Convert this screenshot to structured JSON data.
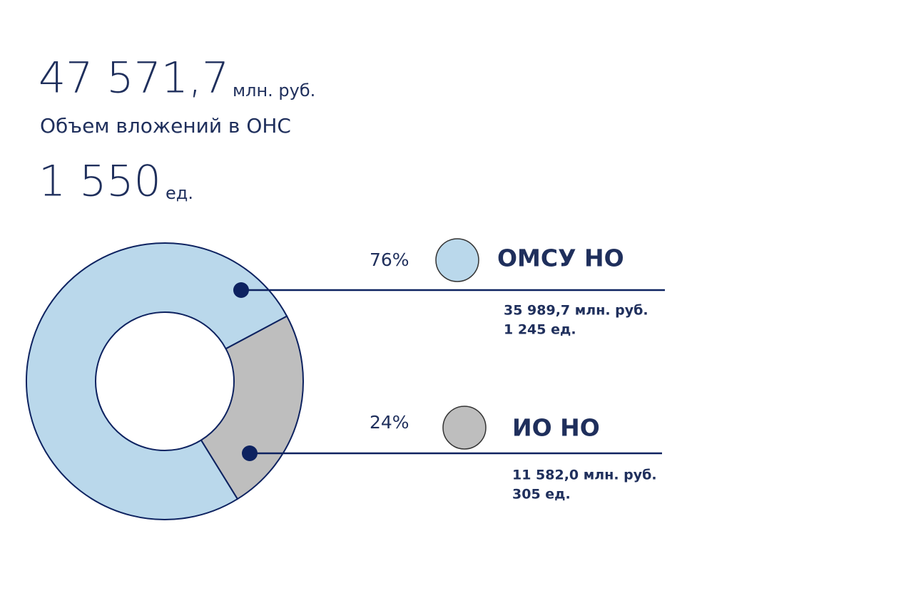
{
  "header": {
    "total_value": "47 571,7",
    "total_unit": "млн. руб.",
    "total_caption": "Объем вложений в ОНС",
    "count_value": "1 550",
    "count_unit": "ед."
  },
  "chart_data": {
    "type": "donut",
    "categories": [
      "ОМСУ НО",
      "ИО НО"
    ],
    "values": [
      76,
      24
    ],
    "value_labels": [
      "76%",
      "24%"
    ],
    "colors": [
      "#bad8eb",
      "#bebebe"
    ],
    "details": [
      [
        "35 989,7 млн. руб.",
        "1 245 ед."
      ],
      [
        "11 582,0 млн. руб.",
        "305 ед."
      ]
    ]
  }
}
